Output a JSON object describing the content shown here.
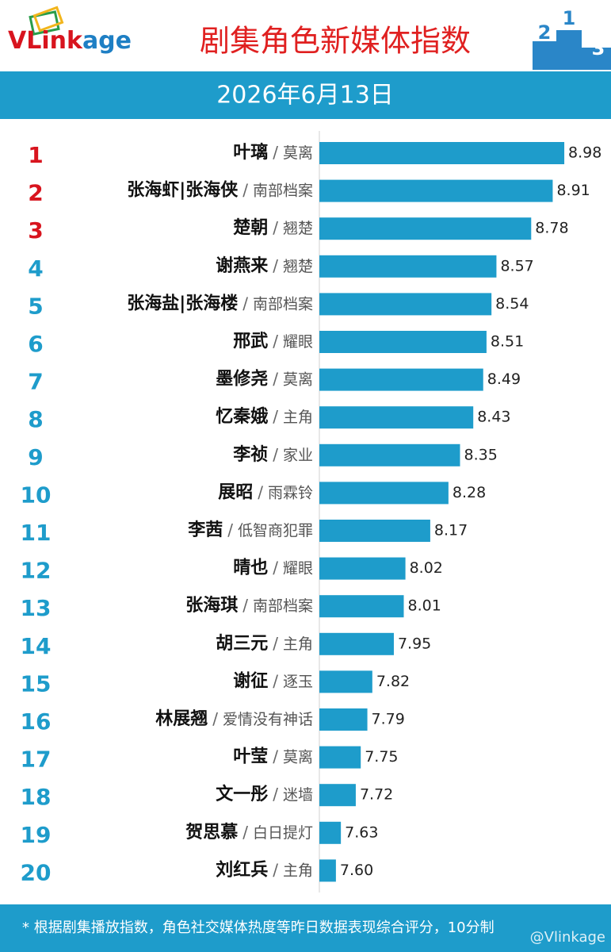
{
  "chart_data": {
    "type": "bar",
    "orientation": "horizontal",
    "logo": [
      "VLink",
      "age"
    ],
    "title": "剧集角色新媒体指数",
    "podium": [
      2,
      1,
      3
    ],
    "subtitle": "2026年6月13日",
    "ranks": [
      1,
      2,
      3,
      4,
      5,
      6,
      7,
      8,
      9,
      10,
      11,
      12,
      13,
      14,
      15,
      16,
      17,
      18,
      19,
      20
    ],
    "categories": [
      "叶璃",
      "张海虾|张海侠",
      "楚朝",
      "谢燕来",
      "张海盐|张海楼",
      "邢武",
      "墨修尧",
      "忆秦娥",
      "李祯",
      "展昭",
      "李茜",
      "晴也",
      "张海琪",
      "胡三元",
      "谢征",
      "林展翘",
      "叶莹",
      "文一彤",
      "贺思慕",
      "刘红兵"
    ],
    "separator": "/",
    "dramas": [
      "莫离",
      "南部档案",
      "翘楚",
      "翘楚",
      "南部档案",
      "耀眼",
      "莫离",
      "主角",
      "家业",
      "雨霖铃",
      "低智商犯罪",
      "耀眼",
      "南部档案",
      "主角",
      "逐玉",
      "爱情没有神话",
      "莫离",
      "迷墙",
      "白日提灯",
      "主角"
    ],
    "values": [
      8.98,
      8.91,
      8.78,
      8.57,
      8.54,
      8.51,
      8.49,
      8.43,
      8.35,
      8.28,
      8.17,
      8.02,
      8.01,
      7.95,
      7.82,
      7.79,
      7.75,
      7.72,
      7.63,
      7.6
    ],
    "value_labels": [
      "8.98",
      "8.91",
      "8.78",
      "8.57",
      "8.54",
      "8.51",
      "8.49",
      "8.43",
      "8.35",
      "8.28",
      "8.17",
      "8.02",
      "8.01",
      "7.95",
      "7.82",
      "7.79",
      "7.75",
      "7.72",
      "7.63",
      "7.60"
    ],
    "xlim": [
      7.5,
      9.2
    ],
    "color": "#1e9ccb",
    "top_ranks": 3,
    "top_rank_color": "#d8141e",
    "note": "* 根据剧集播放指数，角色社交媒体热度等昨日数据表现综合评分，10分制",
    "watermark": "@Vlinkage"
  }
}
